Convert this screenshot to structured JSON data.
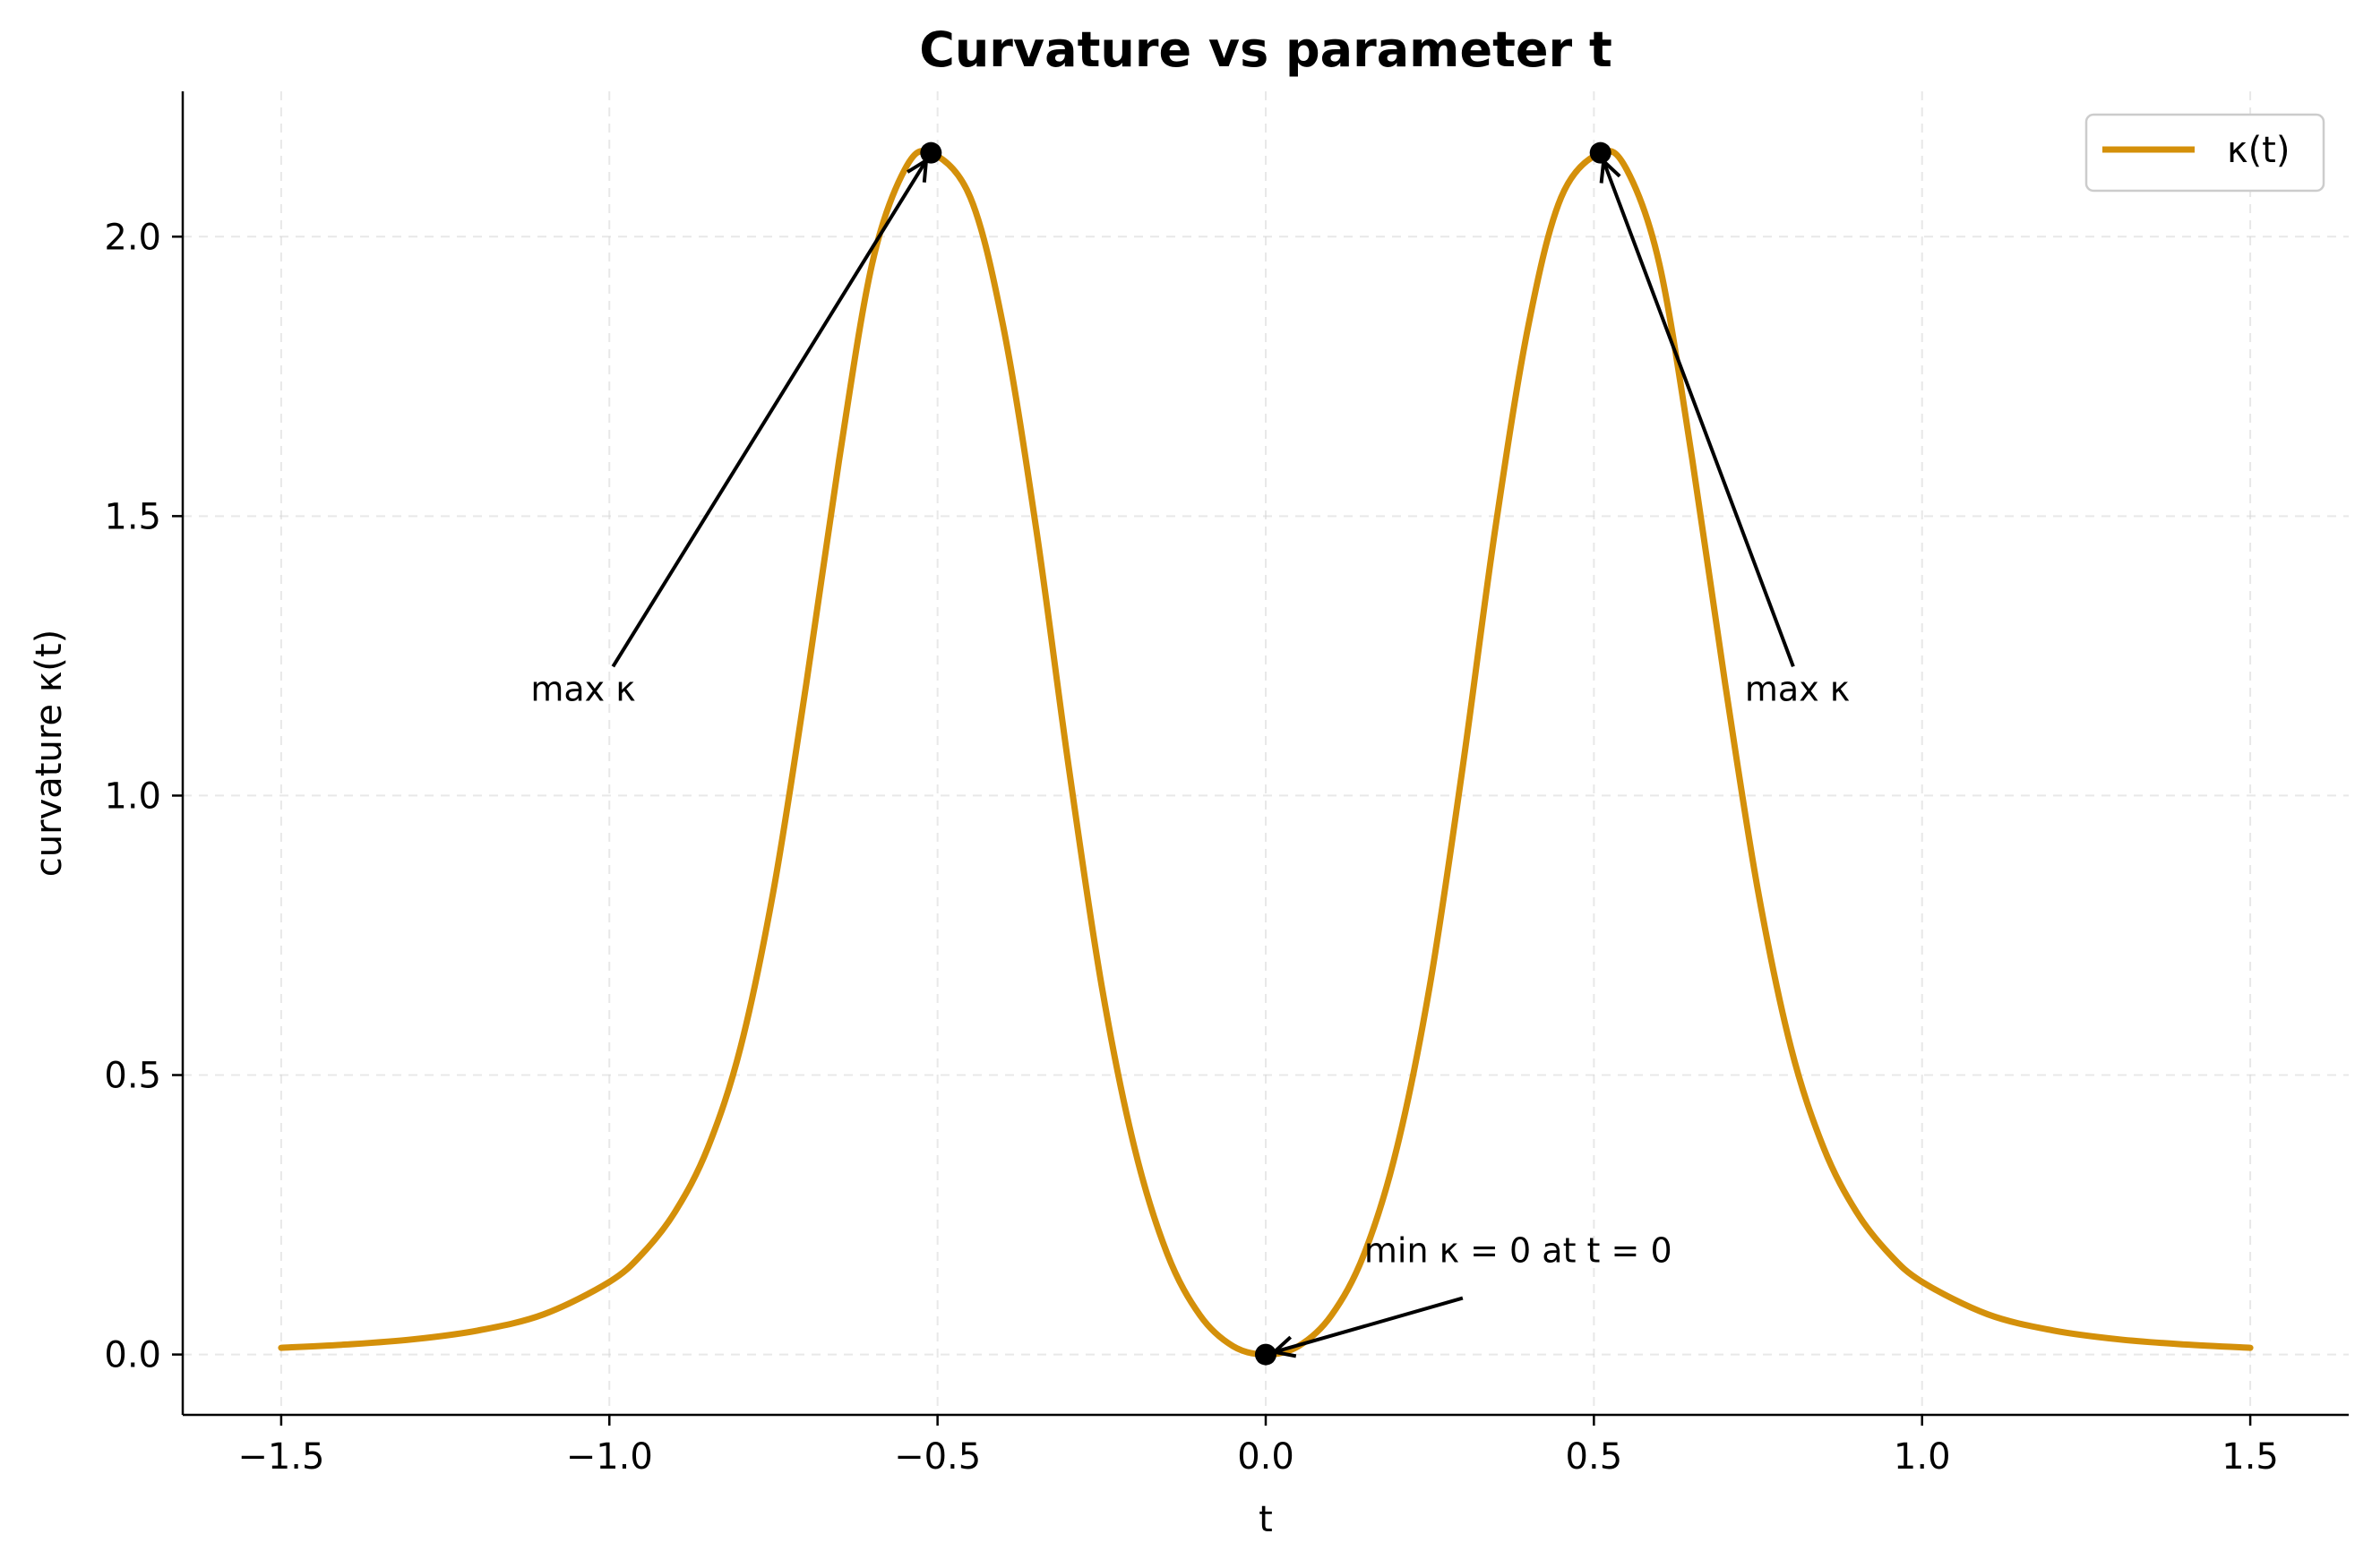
{
  "chart_data": {
    "type": "line",
    "title": "Curvature vs parameter t",
    "xlabel": "t",
    "ylabel": "curvature κ(t)",
    "xlim": [
      -1.65,
      1.65
    ],
    "ylim": [
      -0.108,
      2.26
    ],
    "xticks": [
      -1.5,
      -1.0,
      -0.5,
      0.0,
      0.5,
      1.0,
      1.5
    ],
    "xtick_labels": [
      "−1.5",
      "−1.0",
      "−0.5",
      "0.0",
      "0.5",
      "1.0",
      "1.5"
    ],
    "yticks": [
      0.0,
      0.5,
      1.0,
      1.5,
      2.0
    ],
    "ytick_labels": [
      "0.0",
      "0.5",
      "1.0",
      "1.5",
      "2.0"
    ],
    "grid": true,
    "legend_position": "top-right",
    "color": "#D4900A",
    "series": [
      {
        "name": "κ(t)",
        "color": "#D4900A",
        "x": [
          -1.5,
          -1.4,
          -1.3,
          -1.2,
          -1.1,
          -1.0,
          -0.95,
          -0.9,
          -0.85,
          -0.8,
          -0.75,
          -0.7,
          -0.65,
          -0.6,
          -0.55,
          -0.51,
          -0.45,
          -0.4,
          -0.35,
          -0.3,
          -0.25,
          -0.2,
          -0.15,
          -0.1,
          -0.05,
          0.0,
          0.05,
          0.1,
          0.15,
          0.2,
          0.25,
          0.3,
          0.35,
          0.4,
          0.45,
          0.51,
          0.55,
          0.6,
          0.65,
          0.7,
          0.75,
          0.8,
          0.85,
          0.9,
          0.95,
          1.0,
          1.1,
          1.2,
          1.3,
          1.4,
          1.5
        ],
        "y": [
          0.012,
          0.018,
          0.027,
          0.043,
          0.072,
          0.13,
          0.18,
          0.255,
          0.37,
          0.55,
          0.83,
          1.2,
          1.6,
          1.95,
          2.12,
          2.15,
          2.07,
          1.84,
          1.48,
          1.05,
          0.66,
          0.37,
          0.18,
          0.07,
          0.015,
          0.0,
          0.015,
          0.07,
          0.18,
          0.37,
          0.66,
          1.05,
          1.48,
          1.84,
          2.07,
          2.15,
          2.12,
          1.95,
          1.6,
          1.2,
          0.83,
          0.55,
          0.37,
          0.255,
          0.18,
          0.13,
          0.072,
          0.043,
          0.027,
          0.018,
          0.012
        ]
      }
    ],
    "markers": [
      {
        "x": -0.51,
        "y": 2.15
      },
      {
        "x": 0.51,
        "y": 2.15
      },
      {
        "x": 0.0,
        "y": 0.0
      }
    ],
    "annotations": [
      {
        "text": "max κ",
        "x": -0.51,
        "y": 2.15,
        "text_x": -1.12,
        "text_y": 1.17
      },
      {
        "text": "max κ",
        "x": 0.51,
        "y": 2.15,
        "text_x": 0.73,
        "text_y": 1.17
      },
      {
        "text": "min κ = 0 at t = 0",
        "x": 0.0,
        "y": 0.0,
        "text_x": 0.15,
        "text_y": 0.165
      }
    ]
  }
}
